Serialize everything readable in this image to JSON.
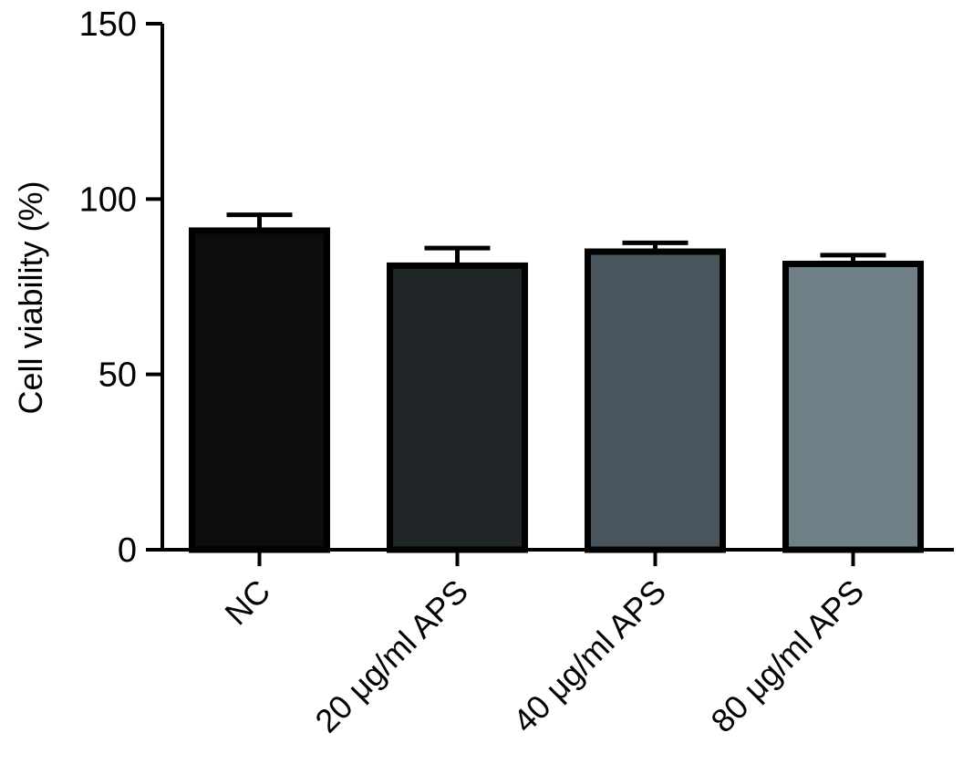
{
  "chart_data": {
    "type": "bar",
    "title": "",
    "xlabel": "",
    "ylabel": "Cell viability (%)",
    "ylim": [
      0,
      150
    ],
    "yticks": [
      0,
      50,
      100,
      150
    ],
    "ytick_labels": [
      "0",
      "50",
      "100",
      "150"
    ],
    "categories": [
      "NC",
      "20 μg/ml APS",
      "40 μg/ml APS",
      "80 μg/ml APS"
    ],
    "values": [
      91,
      81,
      85,
      81.5
    ],
    "errors": [
      4.5,
      5,
      2.5,
      2.5
    ],
    "colors": [
      "#0d0d0d",
      "#212629",
      "#48555c",
      "#6f8087"
    ],
    "grid": false,
    "legend": "none"
  }
}
